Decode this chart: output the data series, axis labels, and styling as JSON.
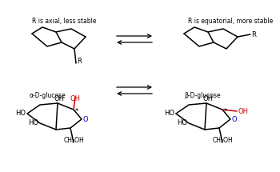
{
  "bg_color": "#ffffff",
  "line_color": "#000000",
  "blue_color": "#0000cc",
  "red_color": "#cc0000",
  "lw": 1.1,
  "fs": 6.0,
  "label_axial": "R is axial, less stable",
  "label_equatorial": "R is equatorial, more stable",
  "label_alpha": "α-D-glucose",
  "label_beta": "β-D-glucose",
  "label_R": "R",
  "label_O": "O",
  "label_CH2OH": "CH₂OH",
  "label_HO": "HO",
  "label_OH": "OH"
}
